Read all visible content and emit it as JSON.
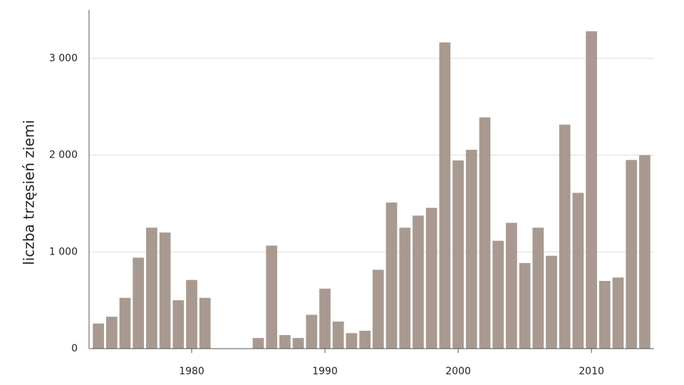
{
  "chart_data": {
    "type": "bar",
    "y_label": "liczba trzęsień ziemi",
    "x": [
      1973,
      1974,
      1975,
      1976,
      1977,
      1978,
      1979,
      1980,
      1981,
      1985,
      1986,
      1987,
      1988,
      1989,
      1990,
      1991,
      1992,
      1993,
      1994,
      1995,
      1996,
      1997,
      1998,
      1999,
      2000,
      2001,
      2002,
      2003,
      2004,
      2005,
      2006,
      2007,
      2008,
      2009,
      2010,
      2011,
      2012,
      2013,
      2014
    ],
    "values": [
      260,
      330,
      525,
      940,
      1250,
      1200,
      500,
      710,
      525,
      110,
      1065,
      140,
      110,
      350,
      620,
      280,
      160,
      185,
      815,
      1510,
      1250,
      1375,
      1455,
      3165,
      1945,
      2055,
      2390,
      1115,
      1300,
      885,
      1250,
      960,
      2315,
      1610,
      3280,
      700,
      735,
      1950,
      2000
    ],
    "color": "#a89a90",
    "xlim": [
      1972.3,
      2014.7
    ],
    "xticks": [
      1980,
      1990,
      2000,
      2010
    ],
    "ylim": [
      0,
      3500
    ],
    "yticks": [
      0,
      {
        "value": 1000,
        "label": "1 000"
      },
      {
        "value": 2000,
        "label": "2 000"
      },
      {
        "value": 3000,
        "label": "3 000"
      }
    ],
    "grid": true
  }
}
